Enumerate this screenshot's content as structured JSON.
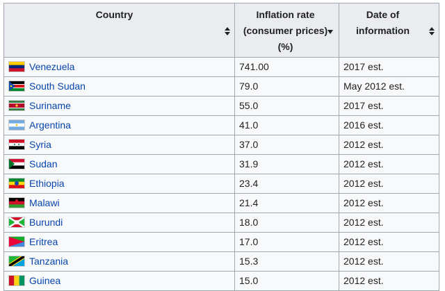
{
  "table": {
    "header": [
      "Country",
      "Inflation rate (consumer prices) (%)",
      "Date of information"
    ],
    "rows": [
      [
        "Venezuela",
        "741.00",
        "2017 est."
      ],
      [
        "South Sudan",
        "79.0",
        "May 2012 est."
      ],
      [
        "Suriname",
        "55.0",
        "2017 est."
      ],
      [
        "Argentina",
        "41.0",
        "2016 est."
      ],
      [
        "Syria",
        "37.0",
        "2012 est."
      ],
      [
        "Sudan",
        "31.9",
        "2012 est."
      ],
      [
        "Ethiopia",
        "23.4",
        "2012 est."
      ],
      [
        "Malawi",
        "21.4",
        "2012 est."
      ],
      [
        "Burundi",
        "18.0",
        "2012 est."
      ],
      [
        "Eritrea",
        "17.0",
        "2012 est."
      ],
      [
        "Tanzania",
        "15.3",
        "2012 est."
      ],
      [
        "Guinea",
        "15.0",
        "2012 est."
      ]
    ]
  }
}
